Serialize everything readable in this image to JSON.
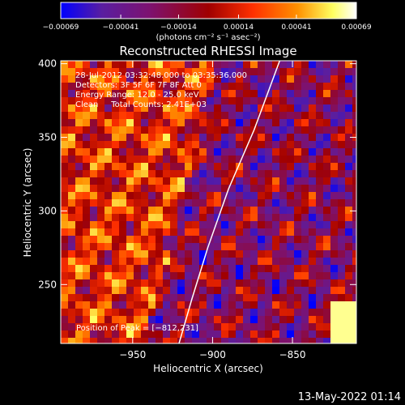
{
  "chart_data": {
    "type": "heatmap",
    "title": "Reconstructed RHESSI Image",
    "xlabel": "Heliocentric X (arcsec)",
    "ylabel": "Heliocentric Y (arcsec)",
    "xlim": [
      -995,
      -810
    ],
    "ylim": [
      210,
      402
    ],
    "x_ticks": [
      -950,
      -900,
      -850
    ],
    "x_tick_labels": [
      "−950",
      "−900",
      "−850"
    ],
    "y_ticks": [
      250,
      300,
      350,
      400
    ],
    "y_tick_labels": [
      "250",
      "300",
      "350",
      "400"
    ],
    "colorbar": {
      "min": -0.00069,
      "max": 0.00069,
      "tick_values": [
        -0.00069,
        -0.00041,
        -0.00014,
        0.00014,
        0.00041,
        0.00069
      ],
      "tick_labels": [
        "−0.00069",
        "−0.00041",
        "−0.00014",
        "0.00014",
        "0.00041",
        "0.00069"
      ],
      "unit_label": "(photons cm⁻² s⁻¹ asec⁻²)",
      "colors": [
        "#0000ff",
        "#5a1ea0",
        "#7d1270",
        "#a00000",
        "#ff3000",
        "#ff9000",
        "#ffff60",
        "#ffffff"
      ]
    },
    "annotations": [
      "28-Jul-2012 03:32:48.000 to 03:35:36.000",
      "Detectors: 3F 5F 6F 7F 8F  Att 0",
      "Energy Range: 12.0 - 25.0 keV",
      "Clean     Total Counts: 2.41E+03"
    ],
    "peak_label": "Position of Peak = [−812,231]",
    "peak_position": [
      -812,
      231
    ],
    "limb_curve": [
      [
        -921,
        210
      ],
      [
        -913,
        240
      ],
      [
        -903,
        275
      ],
      [
        -890,
        315
      ],
      [
        -874,
        355
      ],
      [
        -858,
        402
      ]
    ],
    "grid": false
  },
  "timestamp": "13-May-2022 01:14"
}
